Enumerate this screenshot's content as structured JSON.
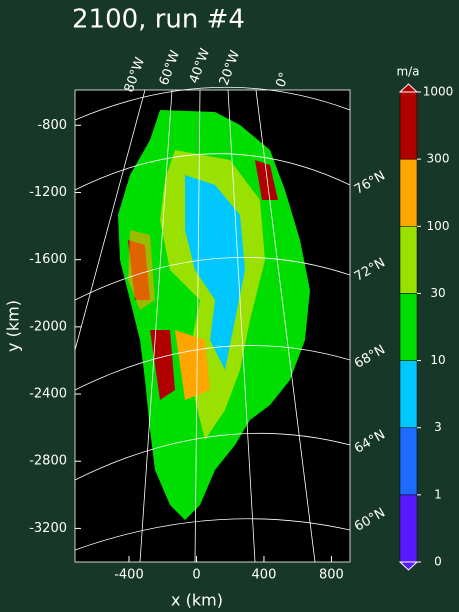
{
  "title": "2100, run #4",
  "x_axis": {
    "label": "x (km)",
    "lim": [
      -720,
      910
    ],
    "ticks": [
      -400,
      0,
      400,
      800
    ]
  },
  "y_axis": {
    "label": "y (km)",
    "lim": [
      -3400,
      -590
    ],
    "ticks": [
      -800,
      -1200,
      -1600,
      -2000,
      -2400,
      -2800,
      -3200
    ]
  },
  "graticule": {
    "longitudes": [
      "80°W",
      "60°W",
      "40°W",
      "20°W",
      "0°"
    ],
    "latitudes": [
      "76°N",
      "72°N",
      "68°N",
      "64°N",
      "60°N"
    ]
  },
  "colorbar": {
    "label": "m/a",
    "ticks": [
      0,
      1,
      3,
      10,
      30,
      100,
      300,
      1000
    ],
    "colors": [
      "#5a1aff",
      "#1e6bff",
      "#00c8ff",
      "#00dd00",
      "#9ae000",
      "#ffa500",
      "#b00000"
    ]
  }
}
